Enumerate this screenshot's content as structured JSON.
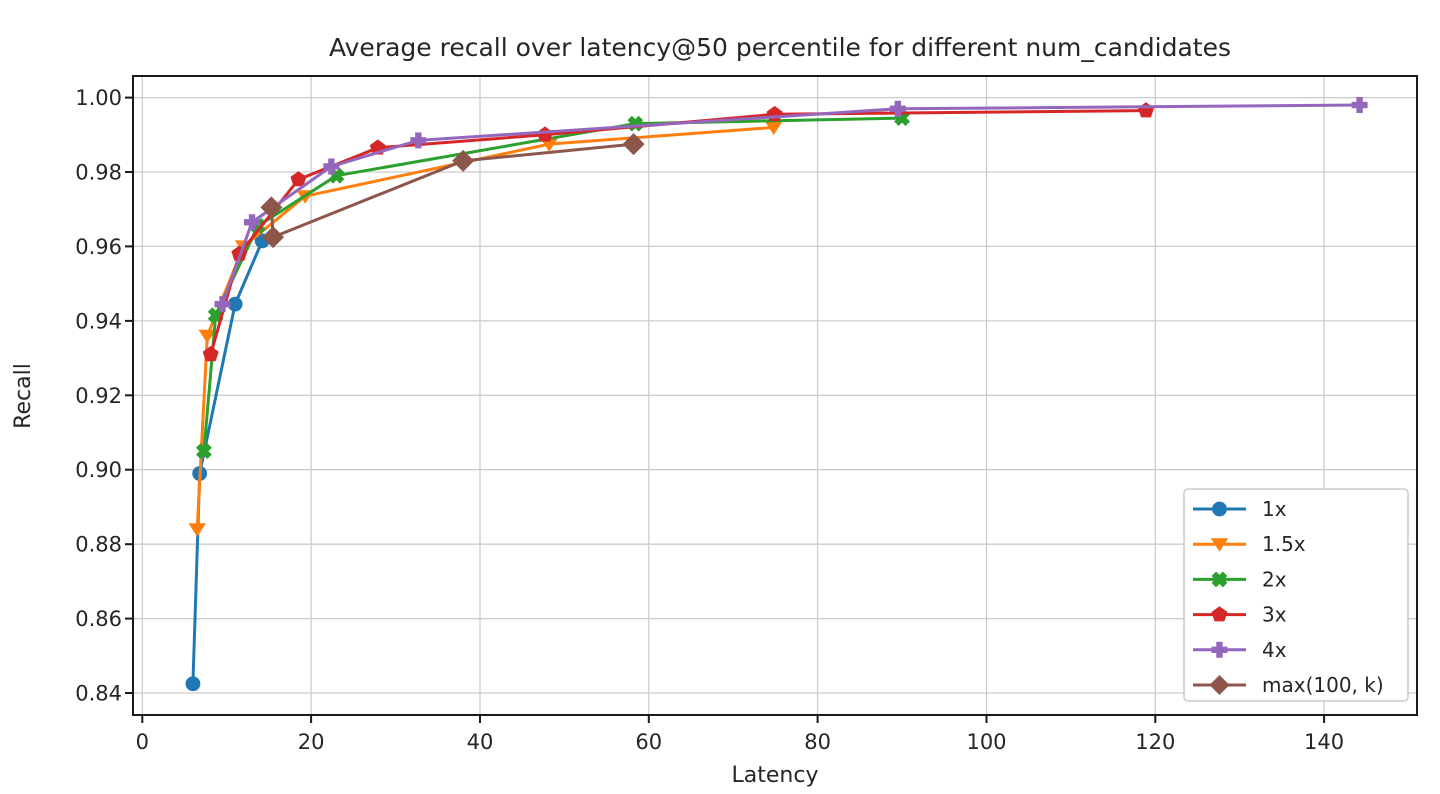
{
  "chart_data": {
    "type": "line",
    "title": "Average recall over latency@50 percentile for different num_candidates",
    "xlabel": "Latency",
    "ylabel": "Recall",
    "xlim": [
      -1.1,
      151.0
    ],
    "ylim": [
      0.8341,
      1.0058
    ],
    "x_ticks": [
      0,
      20,
      40,
      60,
      80,
      100,
      120,
      140
    ],
    "y_ticks": [
      0.84,
      0.86,
      0.88,
      0.9,
      0.92,
      0.94,
      0.96,
      0.98,
      1.0
    ],
    "grid": true,
    "grid_color": "#cccccc",
    "text_color": "#262626",
    "spine_color": "#1a1a1a",
    "legend_position": "lower right",
    "legend_labels": [
      "1x",
      "1.5x",
      "2x",
      "3x",
      "4x",
      "max(100, k)"
    ],
    "series": [
      {
        "name": "1x",
        "color": "#1f77b4",
        "marker": "circle",
        "points": [
          [
            6.0,
            0.8425
          ],
          [
            6.8,
            0.899
          ],
          [
            11.0,
            0.9445
          ],
          [
            14.2,
            0.9615
          ]
        ]
      },
      {
        "name": "1.5x",
        "color": "#ff7f0e",
        "marker": "triangle-down",
        "points": [
          [
            6.5,
            0.884
          ],
          [
            7.7,
            0.936
          ],
          [
            12.0,
            0.96
          ],
          [
            19.3,
            0.9735
          ],
          [
            48.2,
            0.9875
          ],
          [
            74.8,
            0.992
          ]
        ]
      },
      {
        "name": "2x",
        "color": "#2ca02c",
        "marker": "x",
        "points": [
          [
            7.3,
            0.905
          ],
          [
            8.7,
            0.9415
          ],
          [
            13.7,
            0.9655
          ],
          [
            23.0,
            0.979
          ],
          [
            58.4,
            0.993
          ],
          [
            90.0,
            0.9945
          ]
        ]
      },
      {
        "name": "3x",
        "color": "#d62728",
        "marker": "pentagon",
        "points": [
          [
            8.1,
            0.931
          ],
          [
            11.5,
            0.958
          ],
          [
            18.5,
            0.978
          ],
          [
            27.9,
            0.9865
          ],
          [
            47.7,
            0.99
          ],
          [
            74.9,
            0.9955
          ],
          [
            118.9,
            0.9965
          ]
        ]
      },
      {
        "name": "4x",
        "color": "#9467bd",
        "marker": "plus",
        "points": [
          [
            9.5,
            0.9445
          ],
          [
            13.0,
            0.9665
          ],
          [
            22.4,
            0.9815
          ],
          [
            32.7,
            0.9885
          ],
          [
            89.5,
            0.997
          ],
          [
            144.2,
            0.998
          ]
        ]
      },
      {
        "name": "max(100, k)",
        "color": "#8c564b",
        "marker": "diamond",
        "marker_size": 11,
        "points": [
          [
            15.3,
            0.9705
          ],
          [
            15.5,
            0.9625
          ],
          [
            38.0,
            0.983
          ],
          [
            58.2,
            0.9875
          ]
        ]
      }
    ]
  }
}
